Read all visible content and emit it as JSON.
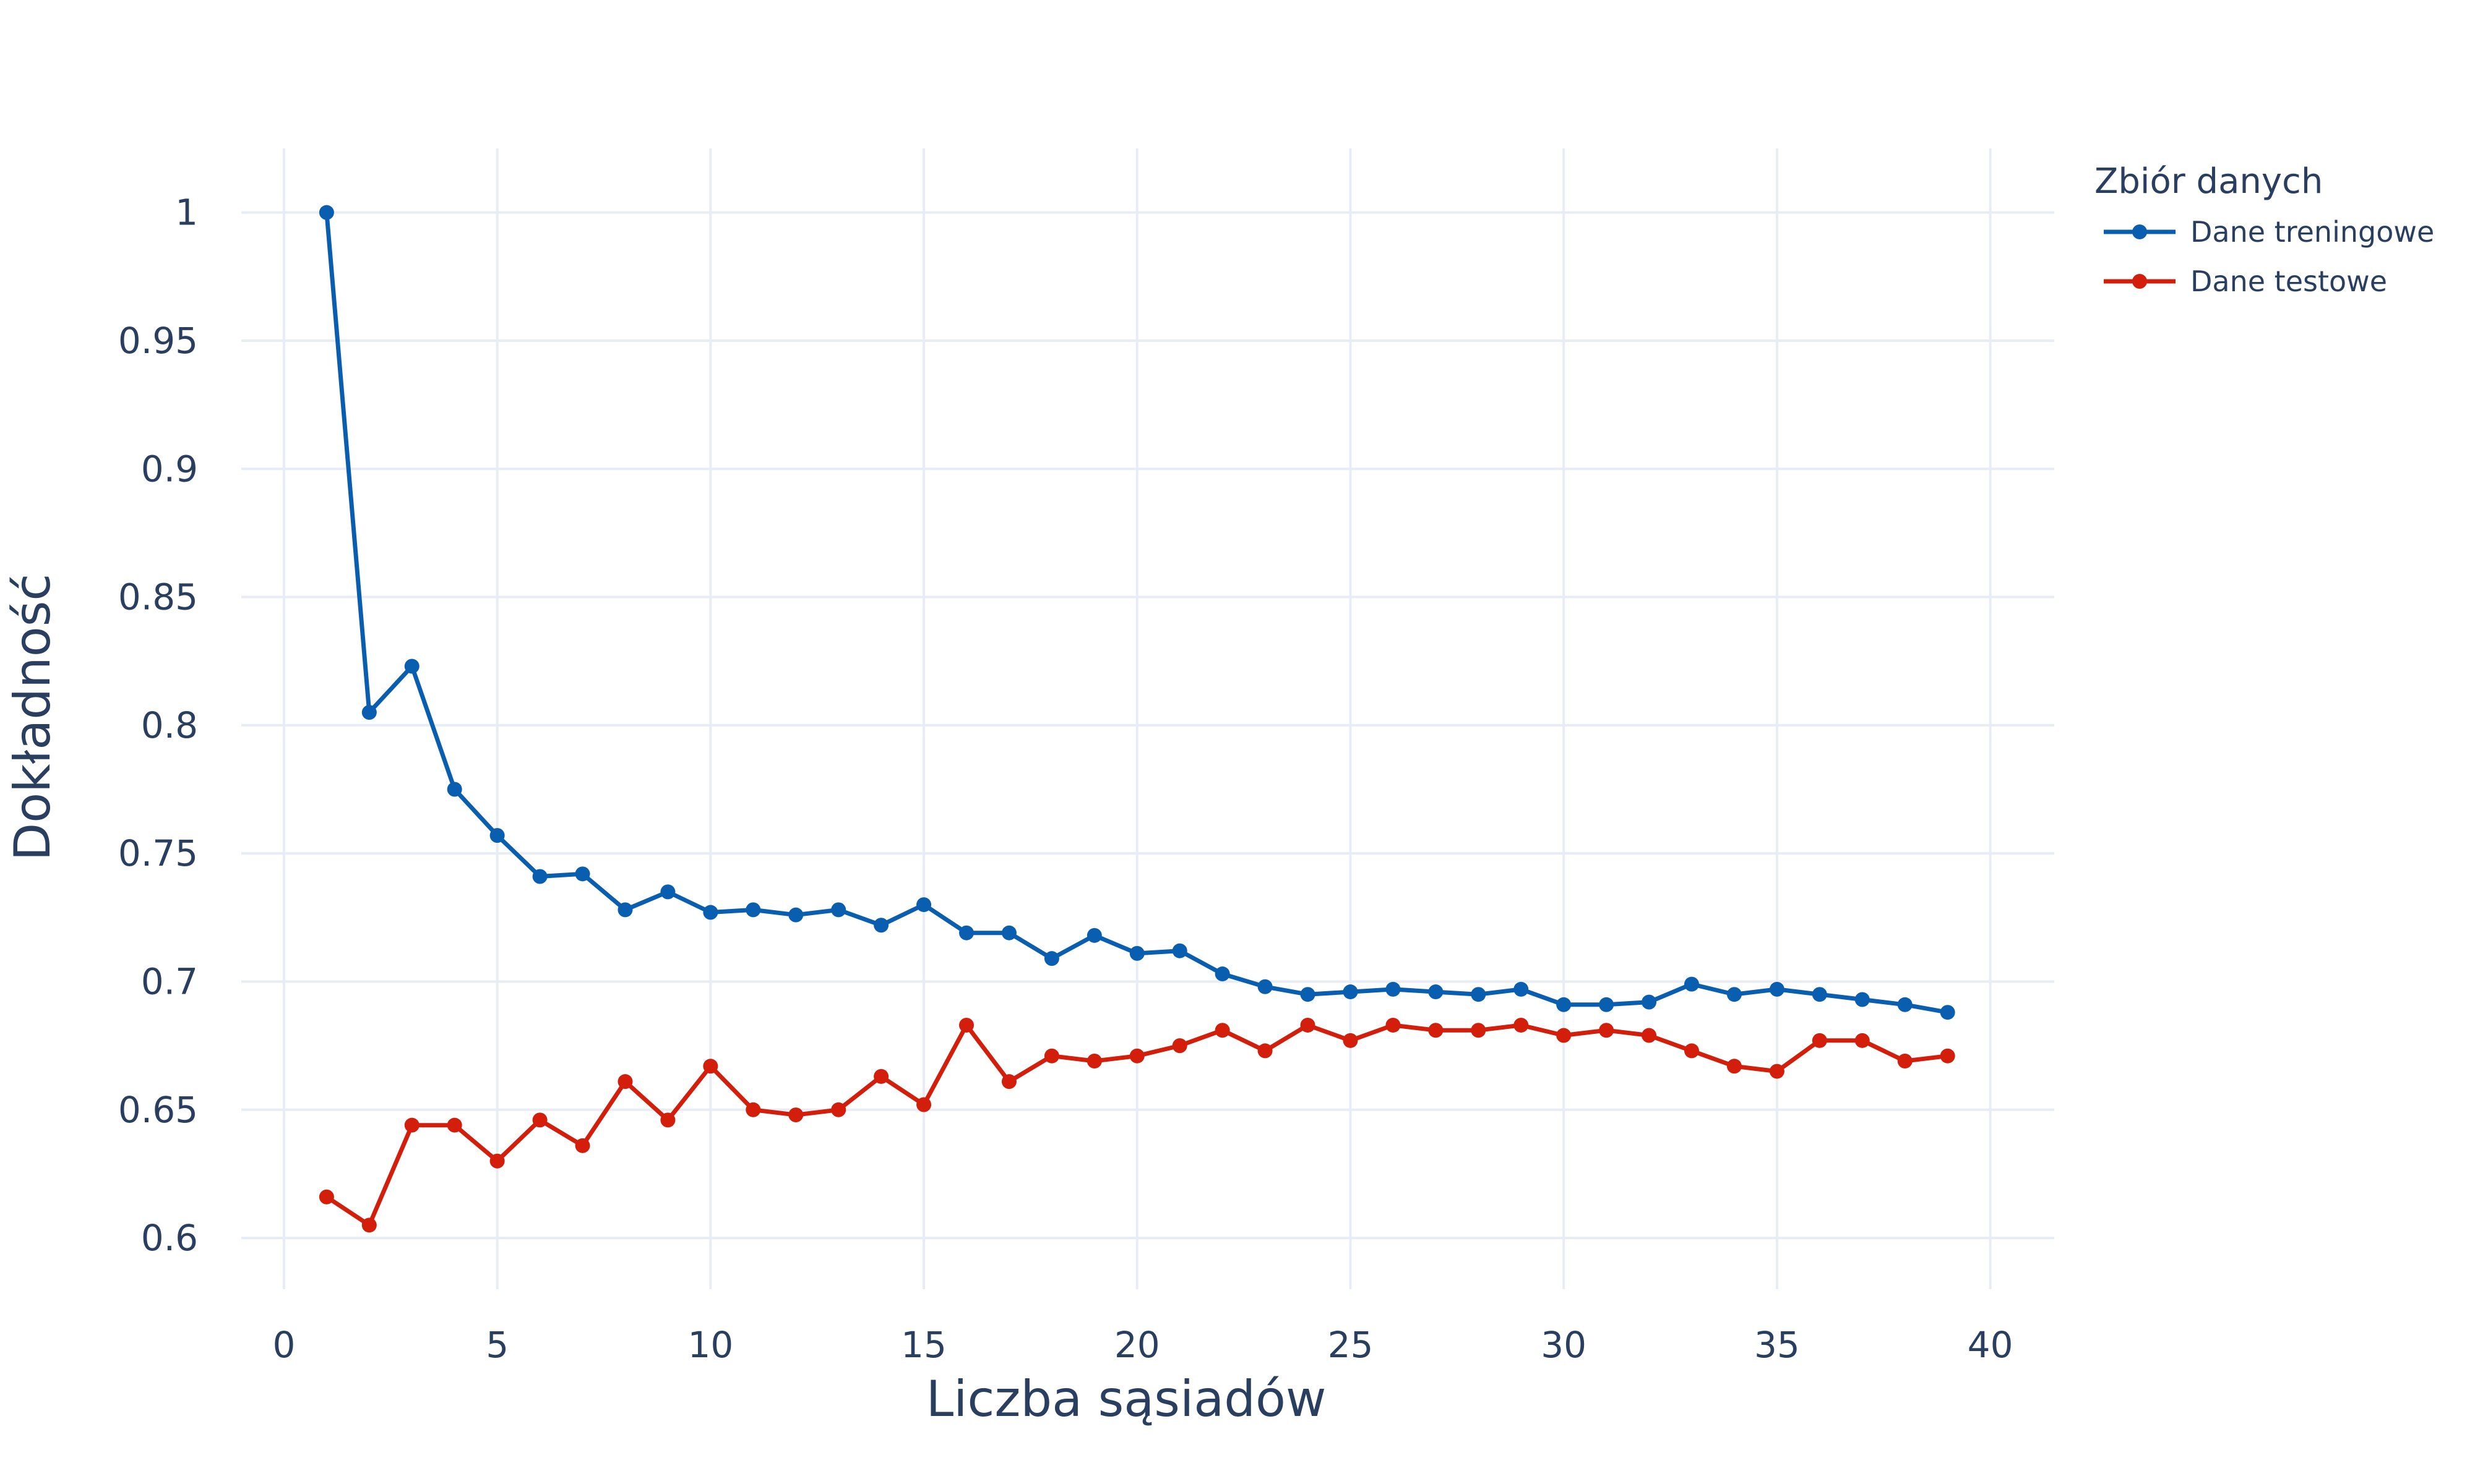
{
  "chart_data": {
    "type": "line",
    "xlabel": "Liczba sąsiadów",
    "ylabel": "Dokładność",
    "xlim": [
      -1,
      41.5
    ],
    "ylim": [
      0.58,
      1.025
    ],
    "xticks": [
      0,
      5,
      10,
      15,
      20,
      25,
      30,
      35,
      40
    ],
    "xtick_labels": [
      "0",
      "5",
      "10",
      "15",
      "20",
      "25",
      "30",
      "35",
      "40"
    ],
    "yticks": [
      0.6,
      0.65,
      0.7,
      0.75,
      0.8,
      0.85,
      0.9,
      0.95,
      1
    ],
    "ytick_labels": [
      "0.6",
      "0.65",
      "0.7",
      "0.75",
      "0.8",
      "0.85",
      "0.9",
      "0.95",
      "1"
    ],
    "grid": true,
    "legend": {
      "title": "Zbiór danych",
      "position": "top-right"
    },
    "x": [
      1,
      2,
      3,
      4,
      5,
      6,
      7,
      8,
      9,
      10,
      11,
      12,
      13,
      14,
      15,
      16,
      17,
      18,
      19,
      20,
      21,
      22,
      23,
      24,
      25,
      26,
      27,
      28,
      29,
      30,
      31,
      32,
      33,
      34,
      35,
      36,
      37,
      38,
      39
    ],
    "series": [
      {
        "name": "Dane treningowe",
        "color": "#0a5eb0",
        "values": [
          1.0,
          0.805,
          0.823,
          0.775,
          0.757,
          0.741,
          0.742,
          0.728,
          0.735,
          0.727,
          0.728,
          0.726,
          0.728,
          0.722,
          0.73,
          0.719,
          0.719,
          0.709,
          0.718,
          0.711,
          0.712,
          0.703,
          0.698,
          0.695,
          0.696,
          0.697,
          0.696,
          0.695,
          0.697,
          0.691,
          0.691,
          0.692,
          0.699,
          0.695,
          0.697,
          0.695,
          0.693,
          0.691,
          0.688
        ]
      },
      {
        "name": "Dane testowe",
        "color": "#d21e0a",
        "values": [
          0.616,
          0.605,
          0.644,
          0.644,
          0.63,
          0.646,
          0.636,
          0.661,
          0.646,
          0.667,
          0.65,
          0.648,
          0.65,
          0.663,
          0.652,
          0.683,
          0.661,
          0.671,
          0.669,
          0.671,
          0.675,
          0.681,
          0.673,
          0.683,
          0.677,
          0.683,
          0.681,
          0.681,
          0.683,
          0.679,
          0.681,
          0.679,
          0.673,
          0.667,
          0.665,
          0.677,
          0.677,
          0.669,
          0.671
        ]
      }
    ]
  }
}
